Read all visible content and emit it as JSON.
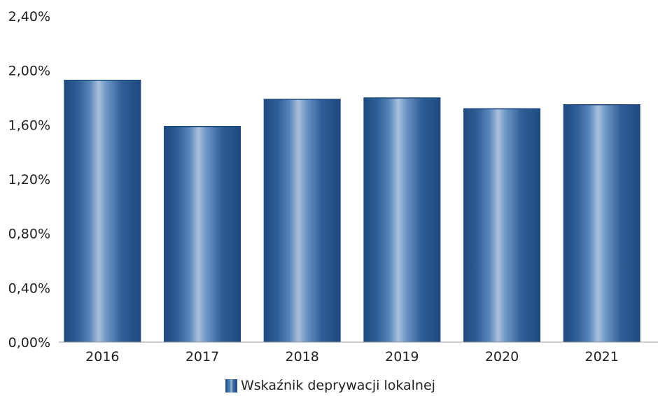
{
  "chart_data": {
    "type": "bar",
    "categories": [
      "2016",
      "2017",
      "2018",
      "2019",
      "2020",
      "2021"
    ],
    "series": [
      {
        "name": "Wskaźnik deprywacji lokalnej",
        "values": [
          1.93,
          1.59,
          1.79,
          1.8,
          1.72,
          1.75
        ]
      }
    ],
    "ylim": [
      0,
      2.4
    ],
    "yticks": [
      0,
      0.4,
      0.8,
      1.2,
      1.6,
      2.0,
      2.4
    ],
    "ytick_labels": [
      "0,00%",
      "0,40%",
      "0,80%",
      "1,20%",
      "1,60%",
      "2,00%",
      "2,40%"
    ],
    "grid": false,
    "legend_position": "bottom",
    "colors": {
      "bar": "#2f5f98",
      "bar_dark": "#1c4a80",
      "bar_light": "#a9c0dc",
      "axis": "#999999"
    }
  }
}
